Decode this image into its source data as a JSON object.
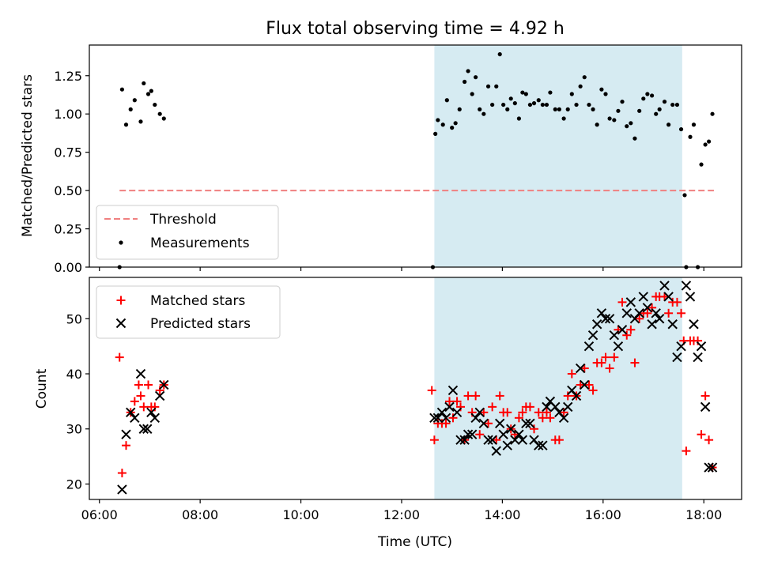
{
  "title": "Flux total observing time = 4.92 h",
  "colors": {
    "threshold": "#f08080",
    "measurement": "#000000",
    "matched": "#ff0000",
    "predicted": "#000000",
    "shade": "#add8e6"
  },
  "chart_data": [
    {
      "type": "scatter",
      "ylabel": "Matched/Predicted stars",
      "ylim": [
        0,
        1.45
      ],
      "yticks": [
        0.0,
        0.25,
        0.5,
        0.75,
        1.0,
        1.25
      ],
      "ytick_labels": [
        "0.00",
        "0.25",
        "0.50",
        "0.75",
        "1.00",
        "1.25"
      ],
      "shaded_span_hours": [
        12.65,
        17.57
      ],
      "legend_position": "lower-left",
      "threshold": {
        "name": "Threshold",
        "value": 0.5,
        "x_range_hours": [
          6.4,
          18.2
        ]
      },
      "measurements": {
        "name": "Measurements",
        "x": [
          6.4,
          6.45,
          6.53,
          6.62,
          6.7,
          6.82,
          6.88,
          6.97,
          7.03,
          7.1,
          7.2,
          7.28,
          12.62,
          12.67,
          12.72,
          12.82,
          12.9,
          13.0,
          13.07,
          13.15,
          13.25,
          13.32,
          13.4,
          13.47,
          13.55,
          13.63,
          13.72,
          13.8,
          13.88,
          13.95,
          14.02,
          14.1,
          14.17,
          14.25,
          14.33,
          14.4,
          14.47,
          14.55,
          14.63,
          14.72,
          14.8,
          14.88,
          14.95,
          15.05,
          15.13,
          15.22,
          15.3,
          15.38,
          15.47,
          15.55,
          15.63,
          15.72,
          15.8,
          15.88,
          15.97,
          16.05,
          16.13,
          16.22,
          16.3,
          16.38,
          16.47,
          16.55,
          16.63,
          16.72,
          16.8,
          16.88,
          16.97,
          17.05,
          17.12,
          17.22,
          17.3,
          17.38,
          17.47,
          17.55,
          17.62,
          17.65,
          17.73,
          17.8,
          17.88,
          17.95,
          18.03,
          18.1,
          18.17
        ],
        "y": [
          0.0,
          1.16,
          0.93,
          1.03,
          1.09,
          0.95,
          1.2,
          1.13,
          1.15,
          1.06,
          1.0,
          0.97,
          0.0,
          0.87,
          0.96,
          0.93,
          1.09,
          0.91,
          0.94,
          1.03,
          1.21,
          1.28,
          1.13,
          1.24,
          1.03,
          1.0,
          1.18,
          1.06,
          1.18,
          1.39,
          1.06,
          1.03,
          1.1,
          1.07,
          0.97,
          1.14,
          1.13,
          1.06,
          1.07,
          1.09,
          1.06,
          1.06,
          1.14,
          1.03,
          1.03,
          0.97,
          1.03,
          1.13,
          1.06,
          1.18,
          1.24,
          1.06,
          1.03,
          0.93,
          1.16,
          1.13,
          0.97,
          0.96,
          1.02,
          1.08,
          0.92,
          0.94,
          0.84,
          1.02,
          1.1,
          1.13,
          1.12,
          1.0,
          1.03,
          1.08,
          0.93,
          1.06,
          1.06,
          0.9,
          0.47,
          0.0,
          0.85,
          0.93,
          0.0,
          0.67,
          0.8,
          0.82,
          1.0
        ]
      }
    },
    {
      "type": "scatter",
      "xlabel": "Time (UTC)",
      "ylabel": "Count",
      "ylim": [
        17.2,
        57.5
      ],
      "yticks": [
        20,
        30,
        40,
        50
      ],
      "ytick_labels": [
        "20",
        "30",
        "40",
        "50"
      ],
      "xlim_hours": [
        5.8,
        18.75
      ],
      "xticks_hours": [
        6,
        8,
        10,
        12,
        14,
        16,
        18
      ],
      "xtick_labels": [
        "06:00",
        "08:00",
        "10:00",
        "12:00",
        "14:00",
        "16:00",
        "18:00"
      ],
      "shaded_span_hours": [
        12.65,
        17.57
      ],
      "legend_position": "upper-left",
      "series": [
        {
          "name": "Matched stars",
          "marker": "plus",
          "x": [
            6.4,
            6.45,
            6.53,
            6.62,
            6.7,
            6.78,
            6.82,
            6.88,
            6.97,
            7.03,
            7.1,
            7.2,
            7.28,
            12.6,
            12.65,
            12.72,
            12.8,
            12.88,
            12.95,
            13.02,
            13.1,
            13.17,
            13.25,
            13.32,
            13.4,
            13.47,
            13.55,
            13.63,
            13.72,
            13.8,
            13.88,
            13.95,
            14.02,
            14.1,
            14.17,
            14.25,
            14.33,
            14.4,
            14.47,
            14.55,
            14.63,
            14.72,
            14.8,
            14.88,
            14.95,
            15.05,
            15.13,
            15.22,
            15.3,
            15.38,
            15.47,
            15.55,
            15.63,
            15.72,
            15.8,
            15.88,
            15.97,
            16.05,
            16.13,
            16.22,
            16.3,
            16.38,
            16.47,
            16.55,
            16.63,
            16.72,
            16.8,
            16.88,
            16.97,
            17.05,
            17.12,
            17.22,
            17.3,
            17.38,
            17.47,
            17.55,
            17.6,
            17.65,
            17.73,
            17.8,
            17.88,
            17.95,
            18.03,
            18.1,
            18.17
          ],
          "y": [
            43,
            22,
            27,
            33,
            35,
            38,
            36,
            34,
            38,
            34,
            34,
            37,
            38,
            37,
            28,
            31,
            31,
            31,
            35,
            32,
            35,
            34,
            28,
            36,
            33,
            36,
            29,
            33,
            31,
            34,
            28,
            36,
            33,
            33,
            30,
            29,
            32,
            33,
            34,
            34,
            30,
            33,
            32,
            33,
            32,
            28,
            28,
            33,
            36,
            40,
            36,
            38,
            41,
            38,
            37,
            42,
            42,
            43,
            41,
            43,
            48,
            53,
            47,
            48,
            42,
            50,
            51,
            51,
            52,
            54,
            54,
            54,
            51,
            53,
            53,
            51,
            46,
            26,
            46,
            46,
            46,
            29,
            36,
            28,
            23
          ]
        },
        {
          "name": "Predicted stars",
          "marker": "x",
          "x": [
            6.45,
            6.53,
            6.62,
            6.7,
            6.82,
            6.88,
            6.95,
            7.03,
            7.1,
            7.2,
            7.28,
            12.65,
            12.72,
            12.8,
            12.88,
            12.95,
            13.02,
            13.1,
            13.17,
            13.25,
            13.32,
            13.4,
            13.47,
            13.55,
            13.63,
            13.72,
            13.8,
            13.88,
            13.95,
            14.02,
            14.1,
            14.17,
            14.25,
            14.33,
            14.4,
            14.47,
            14.55,
            14.63,
            14.72,
            14.8,
            14.88,
            14.95,
            15.05,
            15.13,
            15.22,
            15.3,
            15.38,
            15.47,
            15.55,
            15.63,
            15.72,
            15.8,
            15.88,
            15.97,
            16.05,
            16.13,
            16.22,
            16.3,
            16.38,
            16.47,
            16.55,
            16.63,
            16.72,
            16.8,
            16.88,
            16.97,
            17.05,
            17.12,
            17.22,
            17.3,
            17.38,
            17.47,
            17.55,
            17.65,
            17.73,
            17.8,
            17.88,
            17.95,
            18.03,
            18.1,
            18.17
          ],
          "y": [
            19,
            29,
            33,
            32,
            40,
            30,
            30,
            33,
            32,
            36,
            38,
            32,
            32,
            33,
            32,
            34,
            37,
            33,
            28,
            28,
            29,
            29,
            32,
            33,
            31,
            28,
            28,
            26,
            31,
            29,
            27,
            30,
            28,
            29,
            28,
            31,
            31,
            28,
            27,
            27,
            34,
            35,
            34,
            33,
            32,
            34,
            37,
            36,
            41,
            38,
            45,
            47,
            49,
            51,
            50,
            50,
            47,
            45,
            48,
            51,
            53,
            50,
            51,
            54,
            52,
            49,
            51,
            50,
            56,
            54,
            49,
            43,
            45,
            56,
            54,
            49,
            43,
            45,
            34,
            23,
            23
          ]
        }
      ]
    }
  ]
}
